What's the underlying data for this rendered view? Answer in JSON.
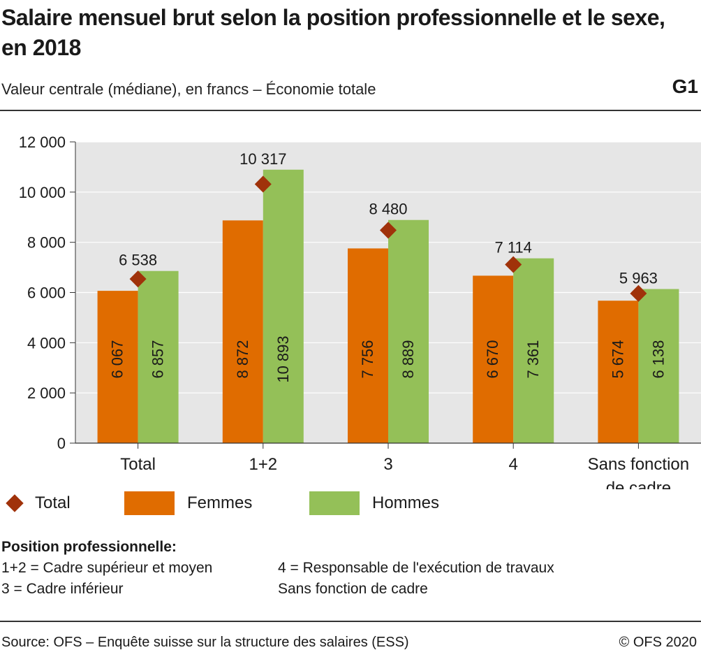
{
  "header": {
    "title": "Salaire mensuel brut selon la position professionnelle et le sexe, en 2018",
    "subtitle": "Valeur centrale (médiane), en francs – Économie totale",
    "figure_no": "G1"
  },
  "chart_data": {
    "type": "bar",
    "categories": [
      "Total",
      "1+2",
      "3",
      "4",
      "Sans fonction de cadre"
    ],
    "category_lines": [
      [
        "Total"
      ],
      [
        "1+2"
      ],
      [
        "3"
      ],
      [
        "4"
      ],
      [
        "Sans fonction",
        "de cadre"
      ]
    ],
    "series": [
      {
        "name": "Femmes",
        "values": [
          6067,
          8872,
          7756,
          6670,
          5674
        ],
        "labels": [
          "6 067",
          "8 872",
          "7 756",
          "6 670",
          "5 674"
        ],
        "color": "#e06c00"
      },
      {
        "name": "Hommes",
        "values": [
          6857,
          10893,
          8889,
          7361,
          6138
        ],
        "labels": [
          "6 857",
          "10 893",
          "8 889",
          "7 361",
          "6 138"
        ],
        "color": "#94c058"
      }
    ],
    "markers": {
      "name": "Total",
      "values": [
        6538,
        10317,
        8480,
        7114,
        5963
      ],
      "labels": [
        "6 538",
        "10 317",
        "8 480",
        "7 114",
        "5 963"
      ],
      "color": "#a0320a"
    },
    "ylim": [
      0,
      12000
    ],
    "yticks": [
      0,
      2000,
      4000,
      6000,
      8000,
      10000,
      12000
    ],
    "ytick_labels": [
      "0",
      "2 000",
      "4 000",
      "6 000",
      "8 000",
      "10 000",
      "12 000"
    ],
    "xlabel": "",
    "ylabel": "",
    "grid": true,
    "plot_background": "#e6e6e6",
    "grid_color": "#ffffff",
    "legend_position": "bottom"
  },
  "legend": {
    "total_label": "Total",
    "femmes_label": "Femmes",
    "hommes_label": "Hommes"
  },
  "notes": {
    "title": "Position professionnelle:",
    "items": [
      "1+2 = Cadre supérieur et moyen",
      "4 = Responsable de l'exécution de travaux",
      "3 = Cadre inférieur",
      "Sans fonction de cadre"
    ]
  },
  "footer": {
    "source": "Source: OFS – Enquête suisse sur la structure des salaires (ESS)",
    "copyright": "© OFS 2020"
  },
  "colors": {
    "femmes": "#e06c00",
    "hommes": "#94c058",
    "total_marker": "#a0320a"
  }
}
